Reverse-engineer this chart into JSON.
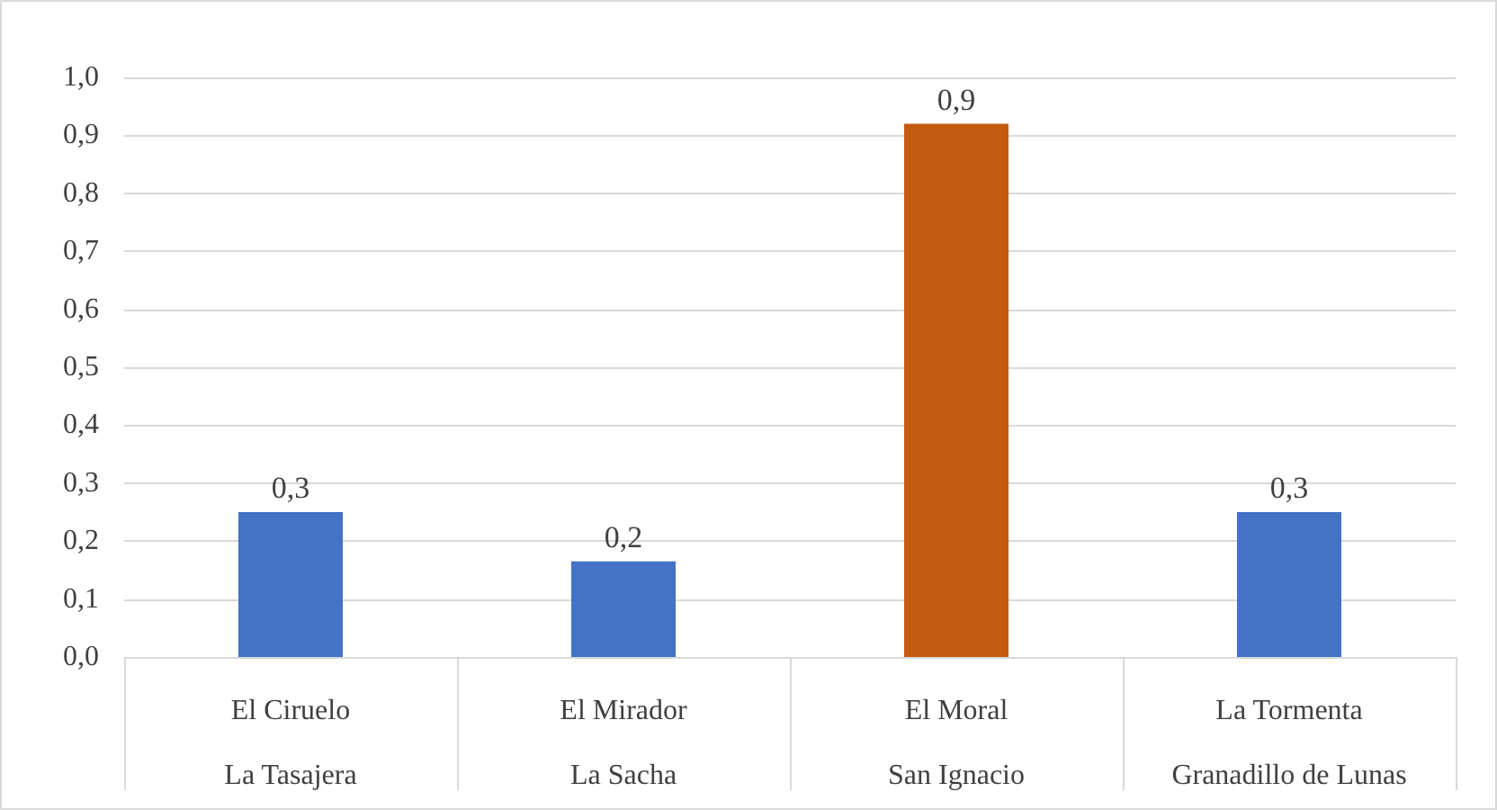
{
  "chart_data": {
    "type": "bar",
    "categories": [
      "El Ciruelo\nLa Tasajera",
      "El Mirador\nLa Sacha",
      "El Moral\nSan Ignacio",
      "La Tormenta\nGranadillo de Lunas"
    ],
    "values": [
      0.25,
      0.165,
      0.92,
      0.25
    ],
    "colors": [
      "#4472c4",
      "#4472c4",
      "#c55a11",
      "#4472c4"
    ],
    "value_labels": [
      "0,3",
      "0,2",
      "0,9",
      "0,3"
    ],
    "ylim": [
      0,
      1
    ],
    "yticks": [
      {
        "value": 0,
        "label": "0,0"
      },
      {
        "value": 0.1,
        "label": "0,1"
      },
      {
        "value": 0.2,
        "label": "0,2"
      },
      {
        "value": 0.3,
        "label": "0,3"
      },
      {
        "value": 0.4,
        "label": "0,4"
      },
      {
        "value": 0.5,
        "label": "0,5"
      },
      {
        "value": 0.6,
        "label": "0,6"
      },
      {
        "value": 0.7,
        "label": "0,7"
      },
      {
        "value": 0.8,
        "label": "0,8"
      },
      {
        "value": 0.9,
        "label": "0,9"
      },
      {
        "value": 1,
        "label": "1,0"
      }
    ],
    "grid": "y"
  }
}
